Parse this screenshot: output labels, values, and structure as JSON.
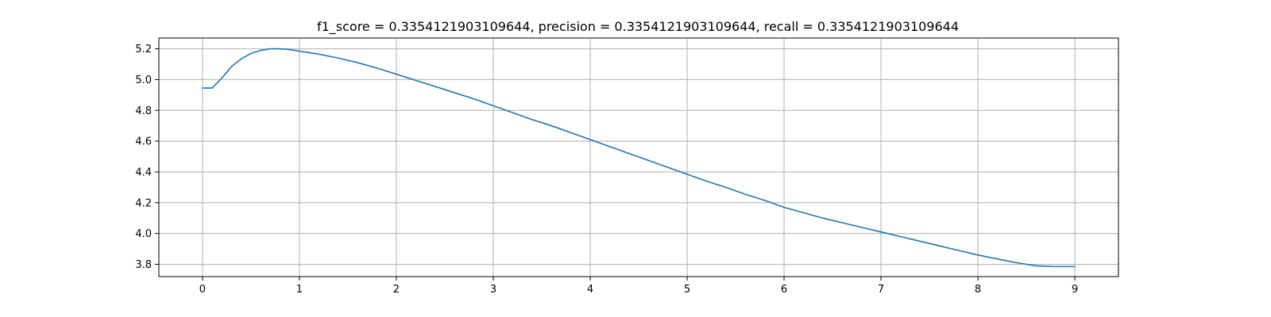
{
  "chart_data": {
    "type": "line",
    "title": "f1_score = 0.3354121903109644, precision = 0.3354121903109644, recall = 0.3354121903109644",
    "xlabel": "",
    "ylabel": "",
    "xlim": [
      -0.45,
      9.45
    ],
    "ylim": [
      3.72,
      5.27
    ],
    "xticks": [
      0,
      1,
      2,
      3,
      4,
      5,
      6,
      7,
      8,
      9
    ],
    "xtick_labels": [
      "0",
      "1",
      "2",
      "3",
      "4",
      "5",
      "6",
      "7",
      "8",
      "9"
    ],
    "yticks": [
      3.8,
      4.0,
      4.2,
      4.4,
      4.6,
      4.8,
      5.0,
      5.2
    ],
    "ytick_labels": [
      "3.8",
      "4.0",
      "4.2",
      "4.4",
      "4.6",
      "4.8",
      "5.0",
      "5.2"
    ],
    "grid": true,
    "line_color": "#1f77b4",
    "series": [
      {
        "x": [
          0,
          0.1,
          0.2,
          0.3,
          0.4,
          0.5,
          0.6,
          0.7,
          0.8,
          0.9,
          1.0,
          1.1,
          1.2,
          1.4,
          1.6,
          1.8,
          2.0,
          2.2,
          2.4,
          2.6,
          2.8,
          3.0,
          3.2,
          3.4,
          3.6,
          3.8,
          4.0,
          4.2,
          4.4,
          4.6,
          4.8,
          5.0,
          5.2,
          5.4,
          5.6,
          5.8,
          6.0,
          6.2,
          6.4,
          6.6,
          6.8,
          7.0,
          7.2,
          7.4,
          7.6,
          7.8,
          8.0,
          8.2,
          8.4,
          8.6,
          8.8,
          8.9,
          9.0
        ],
        "y": [
          4.945,
          4.945,
          5.01,
          5.085,
          5.135,
          5.17,
          5.19,
          5.2,
          5.2,
          5.195,
          5.185,
          5.175,
          5.165,
          5.14,
          5.11,
          5.075,
          5.035,
          4.995,
          4.955,
          4.915,
          4.875,
          4.83,
          4.785,
          4.74,
          4.7,
          4.655,
          4.61,
          4.565,
          4.52,
          4.475,
          4.43,
          4.385,
          4.34,
          4.3,
          4.255,
          4.215,
          4.17,
          4.135,
          4.1,
          4.07,
          4.04,
          4.01,
          3.98,
          3.95,
          3.92,
          3.89,
          3.86,
          3.835,
          3.81,
          3.79,
          3.785,
          3.785,
          3.785
        ]
      }
    ]
  }
}
